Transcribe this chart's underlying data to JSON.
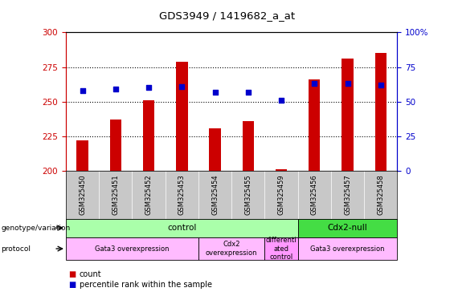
{
  "title": "GDS3949 / 1419682_a_at",
  "samples": [
    "GSM325450",
    "GSM325451",
    "GSM325452",
    "GSM325453",
    "GSM325454",
    "GSM325455",
    "GSM325459",
    "GSM325456",
    "GSM325457",
    "GSM325458"
  ],
  "counts": [
    222,
    237,
    251,
    279,
    231,
    236,
    201,
    266,
    281,
    285
  ],
  "percentile_ranks": [
    58,
    59,
    60,
    61,
    57,
    57,
    51,
    63,
    63,
    62
  ],
  "bar_color": "#cc0000",
  "dot_color": "#0000cc",
  "ylim_left": [
    200,
    300
  ],
  "ylim_right": [
    0,
    100
  ],
  "yticks_left": [
    200,
    225,
    250,
    275,
    300
  ],
  "yticks_right": [
    0,
    25,
    50,
    75,
    100
  ],
  "plot_bg": "#ffffff",
  "outer_bg": "#ffffff",
  "tick_label_area_bg": "#c8c8c8",
  "genotype_row": {
    "groups": [
      {
        "label": "control",
        "start": 0,
        "end": 7,
        "color": "#aaffaa"
      },
      {
        "label": "Cdx2-null",
        "start": 7,
        "end": 10,
        "color": "#44dd44"
      }
    ]
  },
  "protocol_row": {
    "groups": [
      {
        "label": "Gata3 overexpression",
        "start": 0,
        "end": 4,
        "color": "#ffbbff"
      },
      {
        "label": "Cdx2\noverexpression",
        "start": 4,
        "end": 6,
        "color": "#ffbbff"
      },
      {
        "label": "differenti\nated\ncontrol",
        "start": 6,
        "end": 7,
        "color": "#ff99ff"
      },
      {
        "label": "Gata3 overexpression",
        "start": 7,
        "end": 10,
        "color": "#ffbbff"
      }
    ]
  },
  "left_axis_label_color": "#cc0000",
  "right_axis_label_color": "#0000cc",
  "bar_width": 0.35
}
